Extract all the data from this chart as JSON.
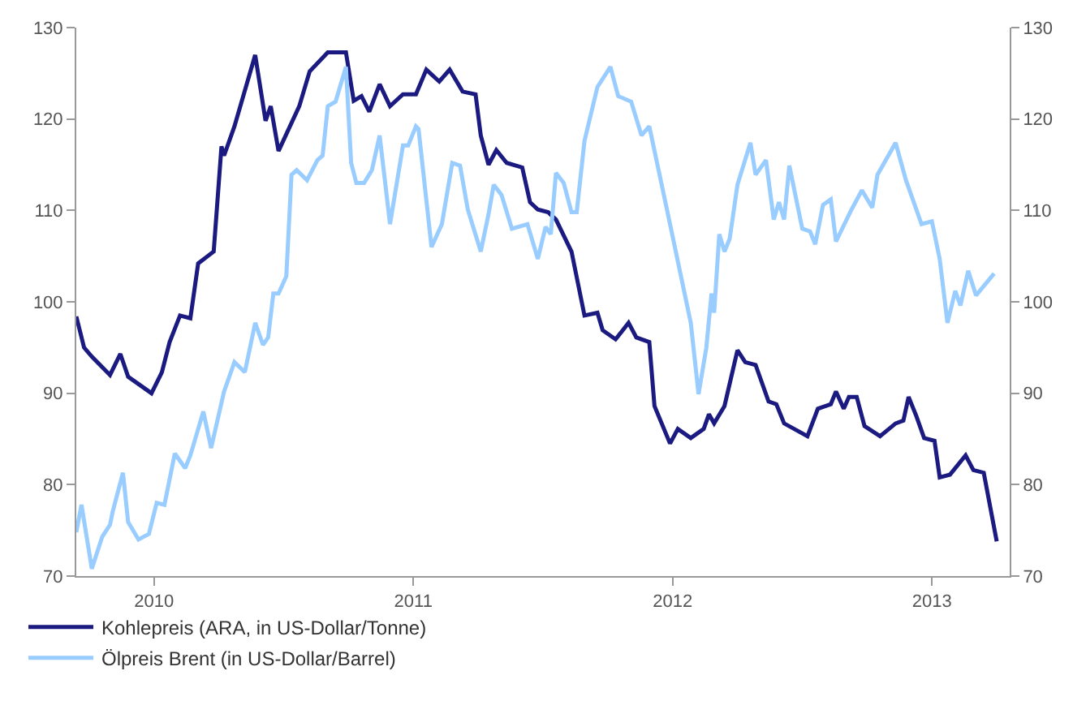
{
  "chart_data": {
    "type": "line",
    "xlim": [
      2009.7,
      2013.3
    ],
    "xticks": [
      2010,
      2011,
      2012,
      2013
    ],
    "ylim": [
      70,
      130
    ],
    "yticks": [
      70,
      80,
      90,
      100,
      110,
      120,
      130
    ],
    "y2lim": [
      70,
      130
    ],
    "y2ticks": [
      70,
      80,
      90,
      100,
      110,
      120,
      130
    ],
    "legend": "bottom left",
    "marker": "none",
    "line_style": "solid",
    "series": [
      {
        "name": "Kohlepreis (ARA, in US-Dollar/Tonne)",
        "color": "#1a1a80",
        "x": [
          2009.7,
          2009.73,
          2009.76,
          2009.83,
          2009.87,
          2009.9,
          2009.99,
          2010.03,
          2010.06,
          2010.1,
          2010.14,
          2010.17,
          2010.23,
          2010.26,
          2010.27,
          2010.31,
          2010.39,
          2010.43,
          2010.45,
          2010.48,
          2010.56,
          2010.6,
          2010.67,
          2010.74,
          2010.77,
          2010.8,
          2010.83,
          2010.87,
          2010.91,
          2010.96,
          2011.01,
          2011.05,
          2011.1,
          2011.14,
          2011.19,
          2011.24,
          2011.26,
          2011.29,
          2011.32,
          2011.36,
          2011.42,
          2011.45,
          2011.48,
          2011.52,
          2011.55,
          2011.61,
          2011.66,
          2011.71,
          2011.73,
          2011.78,
          2011.83,
          2011.86,
          2011.91,
          2011.93,
          2011.99,
          2012.02,
          2012.07,
          2012.12,
          2012.14,
          2012.16,
          2012.2,
          2012.25,
          2012.28,
          2012.32,
          2012.37,
          2012.4,
          2012.43,
          2012.52,
          2012.56,
          2012.61,
          2012.63,
          2012.66,
          2012.68,
          2012.71,
          2012.74,
          2012.8,
          2012.86,
          2012.89,
          2012.91,
          2012.94,
          2012.97,
          2013.01,
          2013.03,
          2013.07,
          2013.13,
          2013.16,
          2013.2,
          2013.25
        ],
        "values": [
          98.4,
          95,
          94,
          92,
          94.3,
          91.8,
          90,
          92.3,
          95.6,
          98.5,
          98.2,
          104.2,
          105.5,
          117,
          116,
          119.2,
          127,
          119.8,
          121.4,
          116.5,
          121.4,
          125.2,
          127.3,
          127.3,
          122,
          122.5,
          120.8,
          123.8,
          121.4,
          122.7,
          122.7,
          125.4,
          124.1,
          125.4,
          123,
          122.7,
          118.2,
          115,
          116.6,
          115.2,
          114.7,
          110.9,
          110.1,
          109.8,
          109,
          105.5,
          98.5,
          98.8,
          96.9,
          95.9,
          97.7,
          96.1,
          95.6,
          88.6,
          84.5,
          86.1,
          85.1,
          86.1,
          87.7,
          86.7,
          88.6,
          94.7,
          93.4,
          93.1,
          89.1,
          88.8,
          86.7,
          85.3,
          88.3,
          88.8,
          90.2,
          88.3,
          89.6,
          89.6,
          86.4,
          85.3,
          86.7,
          87,
          89.6,
          87.5,
          85.1,
          84.8,
          80.8,
          81.1,
          83.2,
          81.6,
          81.3,
          73.8
        ]
      },
      {
        "name": "Ölpreis Brent (in US-Dollar/Barrel)",
        "color": "#99ccff",
        "x": [
          2009.7,
          2009.72,
          2009.76,
          2009.8,
          2009.83,
          2009.84,
          2009.88,
          2009.9,
          2009.94,
          2009.98,
          2010.01,
          2010.04,
          2010.08,
          2010.12,
          2010.14,
          2010.19,
          2010.22,
          2010.27,
          2010.31,
          2010.35,
          2010.39,
          2010.42,
          2010.44,
          2010.46,
          2010.48,
          2010.51,
          2010.53,
          2010.55,
          2010.59,
          2010.63,
          2010.65,
          2010.67,
          2010.7,
          2010.74,
          2010.76,
          2010.78,
          2010.81,
          2010.84,
          2010.87,
          2010.91,
          2010.96,
          2010.98,
          2011.01,
          2011.02,
          2011.07,
          2011.11,
          2011.15,
          2011.18,
          2011.21,
          2011.26,
          2011.29,
          2011.31,
          2011.34,
          2011.38,
          2011.44,
          2011.48,
          2011.51,
          2011.53,
          2011.55,
          2011.58,
          2011.61,
          2011.63,
          2011.66,
          2011.71,
          2011.76,
          2011.79,
          2011.84,
          2011.88,
          2011.91,
          2011.99,
          2012.07,
          2012.1,
          2012.13,
          2012.15,
          2012.16,
          2012.18,
          2012.2,
          2012.22,
          2012.25,
          2012.3,
          2012.32,
          2012.36,
          2012.39,
          2012.41,
          2012.43,
          2012.45,
          2012.5,
          2012.53,
          2012.55,
          2012.58,
          2012.61,
          2012.63,
          2012.69,
          2012.73,
          2012.77,
          2012.79,
          2012.86,
          2012.9,
          2012.96,
          2013.0,
          2013.03,
          2013.06,
          2013.09,
          2013.11,
          2013.14,
          2013.17,
          2013.24
        ],
        "values": [
          74.8,
          77.8,
          70.8,
          74.3,
          75.6,
          77,
          81.3,
          75.9,
          74,
          74.6,
          78,
          77.8,
          83.4,
          81.8,
          83.2,
          88,
          84,
          90.2,
          93.4,
          92.3,
          97.7,
          95.3,
          96.1,
          100.9,
          100.9,
          102.8,
          113.9,
          114.4,
          113.3,
          115.5,
          116,
          121.4,
          121.9,
          125.7,
          115.2,
          113,
          113,
          114.4,
          118.2,
          108.5,
          117.1,
          117.1,
          119.2,
          118.9,
          106,
          108.5,
          115.2,
          114.9,
          110.1,
          105.5,
          109.6,
          112.8,
          111.7,
          108,
          108.5,
          104.7,
          108.2,
          107.4,
          114.1,
          113,
          109.8,
          109.8,
          117.6,
          123.5,
          125.7,
          122.5,
          121.9,
          118.2,
          119.2,
          108.5,
          97.7,
          89.9,
          95,
          100.9,
          98.8,
          107.4,
          105.5,
          106.9,
          112.8,
          117.4,
          113.9,
          115.5,
          109,
          110.9,
          109,
          114.9,
          108,
          107.7,
          106.3,
          110.6,
          111.2,
          106.6,
          110.1,
          112.2,
          110.3,
          113.9,
          117.4,
          113.3,
          108.5,
          108.8,
          104.7,
          97.7,
          101.2,
          99.6,
          103.4,
          100.7,
          103.1
        ]
      }
    ]
  }
}
